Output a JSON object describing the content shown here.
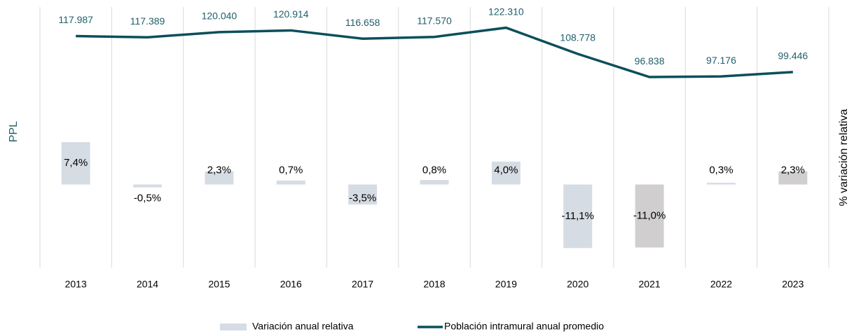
{
  "chart_data": {
    "type": "bar-line",
    "categories": [
      "2013",
      "2014",
      "2015",
      "2016",
      "2017",
      "2018",
      "2019",
      "2020",
      "2021",
      "2022",
      "2023"
    ],
    "ylabel": "PPL",
    "y2label": "% variación relativa",
    "ylim": [
      0,
      133000
    ],
    "y2lim": [
      -14,
      31
    ],
    "series": [
      {
        "name": "Variación anual relativa",
        "type": "bar",
        "axis": "y2",
        "color": "#d6dce4",
        "colors": [
          "#d6dce4",
          "#d6dce4",
          "#d6dce4",
          "#d6dce4",
          "#d6dce4",
          "#d6dce4",
          "#d6dce4",
          "#d6dce4",
          "#d0cece",
          "#d6dce4",
          "#d0cece"
        ],
        "values": [
          7.4,
          -0.5,
          2.3,
          0.7,
          -3.5,
          0.8,
          4.0,
          -11.1,
          -11.0,
          0.3,
          2.3
        ],
        "value_labels": [
          "7,4%",
          "-0,5%",
          "2,3%",
          "0,7%",
          "-3,5%",
          "0,8%",
          "4,0%",
          "-11,1%",
          "-11,0%",
          "0,3%",
          "2,3%"
        ]
      },
      {
        "name": "Población intramural anual promedio",
        "type": "line",
        "axis": "y",
        "color": "#0b4f5c",
        "values": [
          117987,
          117389,
          120040,
          120914,
          116658,
          117570,
          122310,
          108778,
          96838,
          97176,
          99446
        ],
        "value_labels": [
          "117.987",
          "117.389",
          "120.040",
          "120.914",
          "116.658",
          "117.570",
          "122.310",
          "108.778",
          "96.838",
          "97.176",
          "99.446"
        ]
      }
    ]
  }
}
